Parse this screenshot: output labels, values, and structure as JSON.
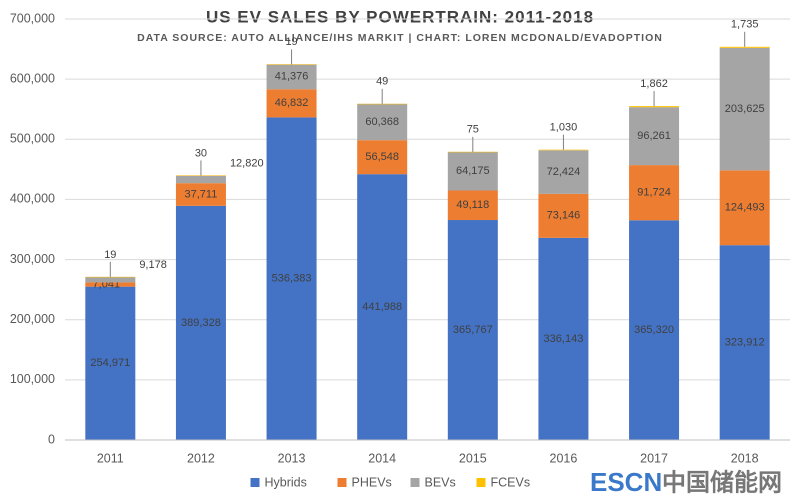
{
  "chart_data": {
    "type": "stacked_bar",
    "title": "US EV SALES BY POWERTRAIN: 2011-2018",
    "subtitle": "DATA SOURCE: AUTO ALLIANCE/IHS MARKIT | CHART: LOREN MCDONALD/EVADOPTION",
    "categories": [
      "2011",
      "2012",
      "2013",
      "2014",
      "2015",
      "2016",
      "2017",
      "2018"
    ],
    "series": [
      {
        "name": "Hybrids",
        "color": "#4472c4",
        "values": [
          254971,
          389328,
          536383,
          441988,
          365767,
          336143,
          365320,
          323912
        ],
        "value_labels": [
          "254,971",
          "389,328",
          "536,383",
          "441,988",
          "365,767",
          "336,143",
          "365,320",
          "323,912"
        ]
      },
      {
        "name": "PHEVs",
        "color": "#ed7d31",
        "values": [
          7041,
          37711,
          46832,
          56548,
          49118,
          73146,
          91724,
          124493
        ],
        "value_labels": [
          "7,041",
          "37,711",
          "46,832",
          "56,548",
          "49,118",
          "73,146",
          "91,724",
          "124,493"
        ]
      },
      {
        "name": "BEVs",
        "color": "#a5a5a5",
        "values": [
          9178,
          12820,
          41376,
          60368,
          64175,
          72424,
          96261,
          203625
        ],
        "value_labels": [
          "9,178",
          "12,820",
          "41,376",
          "60,368",
          "64,175",
          "72,424",
          "96,261",
          "203,625"
        ]
      },
      {
        "name": "FCEVs",
        "color": "#ffc000",
        "values": [
          19,
          30,
          19,
          49,
          75,
          1030,
          1862,
          1735
        ],
        "value_labels": [
          "19",
          "30",
          "19",
          "49",
          "75",
          "1,030",
          "1,862",
          "1,735"
        ]
      }
    ],
    "ylim": [
      0,
      700000
    ],
    "yticks": [
      0,
      {
        "value": 100000,
        "label": "100,000"
      },
      {
        "value": 200000,
        "label": "200,000"
      },
      {
        "value": 300000,
        "label": "300,000"
      },
      {
        "value": 400000,
        "label": "400,000"
      },
      {
        "value": 500000,
        "label": "500,000"
      },
      {
        "value": 600000,
        "label": "600,000"
      },
      {
        "value": 700000,
        "label": "700,000"
      }
    ],
    "grid": true,
    "legend": "bottom"
  },
  "watermark": {
    "brand": "ESCN",
    "name": "中国储能网"
  }
}
